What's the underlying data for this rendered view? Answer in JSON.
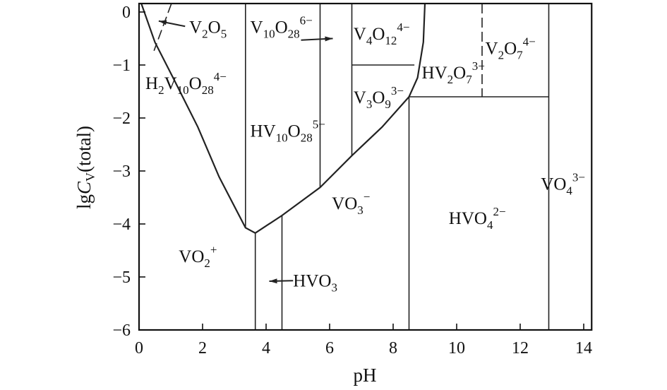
{
  "chart_data": {
    "type": "line",
    "xlabel": "pH",
    "ylabel": {
      "main": "lg",
      "italic": "C",
      "sub": "V",
      "tail": "(total)"
    },
    "xlim": [
      0,
      14.25
    ],
    "ylim": [
      -6,
      0.16
    ],
    "xticks": [
      0,
      2,
      4,
      6,
      8,
      10,
      12,
      14
    ],
    "yticks": [
      0,
      -1,
      -2,
      -3,
      -4,
      -5,
      -6
    ],
    "grid": false,
    "line_color": "#222222",
    "boundaries": [
      {
        "name": "solubility-curve",
        "style": "solid",
        "points": [
          [
            0.07,
            0.16
          ],
          [
            0.5,
            -0.57
          ],
          [
            1.07,
            -1.24
          ],
          [
            1.85,
            -2.17
          ],
          [
            2.52,
            -3.11
          ],
          [
            3.35,
            -4.07
          ],
          [
            3.66,
            -4.17
          ],
          [
            4.5,
            -3.84
          ],
          [
            5.7,
            -3.31
          ],
          [
            6.7,
            -2.71
          ],
          [
            7.65,
            -2.17
          ],
          [
            8.5,
            -1.6
          ],
          [
            8.77,
            -1.24
          ],
          [
            8.95,
            -0.57
          ],
          [
            9.0,
            0.16
          ]
        ]
      },
      {
        "name": "V2O5-boundary",
        "style": "dashed",
        "points": [
          [
            1.02,
            0.16
          ],
          [
            0.47,
            -0.73
          ]
        ]
      },
      {
        "name": "pH-3.35",
        "style": "solid",
        "points": [
          [
            3.35,
            0.16
          ],
          [
            3.35,
            -4.07
          ]
        ]
      },
      {
        "name": "pH-5.7",
        "style": "solid",
        "points": [
          [
            5.7,
            0.16
          ],
          [
            5.7,
            -3.31
          ]
        ]
      },
      {
        "name": "pH-6.7",
        "style": "solid",
        "points": [
          [
            6.7,
            0.16
          ],
          [
            6.7,
            -2.71
          ]
        ]
      },
      {
        "name": "lgC-minus-1",
        "style": "solid",
        "points": [
          [
            6.7,
            -1.0
          ],
          [
            8.67,
            -1.0
          ]
        ]
      },
      {
        "name": "pH-8.5",
        "style": "solid",
        "points": [
          [
            8.5,
            -1.6
          ],
          [
            8.5,
            -6
          ]
        ]
      },
      {
        "name": "lgC-minus-1.6",
        "style": "solid",
        "points": [
          [
            8.5,
            -1.6
          ],
          [
            12.9,
            -1.6
          ]
        ]
      },
      {
        "name": "pH-10.8",
        "style": "dashed",
        "points": [
          [
            10.8,
            0.16
          ],
          [
            10.8,
            -1.6
          ]
        ]
      },
      {
        "name": "pH-12.9",
        "style": "solid",
        "points": [
          [
            12.9,
            0.16
          ],
          [
            12.9,
            -6
          ]
        ]
      },
      {
        "name": "pH-3.66",
        "style": "solid",
        "points": [
          [
            3.66,
            -4.17
          ],
          [
            3.66,
            -6
          ]
        ]
      },
      {
        "name": "pH-4.5",
        "style": "solid",
        "points": [
          [
            4.5,
            -3.84
          ],
          [
            4.5,
            -6
          ]
        ]
      }
    ],
    "arrows": [
      {
        "name": "V2O5-pointer",
        "from": [
          1.45,
          -0.27
        ],
        "to": [
          0.62,
          -0.17
        ]
      },
      {
        "name": "V10O28-pointer",
        "from": [
          5.1,
          -0.53
        ],
        "to": [
          6.1,
          -0.5
        ]
      },
      {
        "name": "HVO3-pointer",
        "from": [
          4.85,
          -5.07
        ],
        "to": [
          4.1,
          -5.08
        ]
      }
    ],
    "regions": [
      {
        "name": "V2O5",
        "at": [
          1.58,
          -0.39
        ],
        "parts": [
          {
            "t": "V"
          },
          {
            "t": "2",
            "s": "sub"
          },
          {
            "t": "O"
          },
          {
            "t": "5",
            "s": "sub"
          }
        ]
      },
      {
        "name": "V10O28-6",
        "at": [
          3.5,
          -0.39
        ],
        "parts": [
          {
            "t": "V"
          },
          {
            "t": "10",
            "s": "sub"
          },
          {
            "t": "O"
          },
          {
            "t": "28",
            "s": "sub"
          },
          {
            "t": "6−",
            "s": "sup"
          }
        ]
      },
      {
        "name": "V4O12-4",
        "at": [
          6.75,
          -0.52
        ],
        "parts": [
          {
            "t": "V"
          },
          {
            "t": "4",
            "s": "sub"
          },
          {
            "t": "O"
          },
          {
            "t": "12",
            "s": "sub"
          },
          {
            "t": "4−",
            "s": "sup"
          }
        ]
      },
      {
        "name": "V2O7-4",
        "at": [
          10.9,
          -0.79
        ],
        "parts": [
          {
            "t": "V"
          },
          {
            "t": "2",
            "s": "sub"
          },
          {
            "t": "O"
          },
          {
            "t": "7",
            "s": "sub"
          },
          {
            "t": "4−",
            "s": "sup"
          }
        ]
      },
      {
        "name": "H2V10O28-4",
        "at": [
          0.2,
          -1.45
        ],
        "parts": [
          {
            "t": "H"
          },
          {
            "t": "2",
            "s": "sub"
          },
          {
            "t": "V"
          },
          {
            "t": "10",
            "s": "sub"
          },
          {
            "t": "O"
          },
          {
            "t": "28",
            "s": "sub"
          },
          {
            "t": "4−",
            "s": "sup"
          }
        ]
      },
      {
        "name": "HV2O7-3",
        "at": [
          8.9,
          -1.25
        ],
        "parts": [
          {
            "t": "H"
          },
          {
            "t": "V"
          },
          {
            "t": "2",
            "s": "sub"
          },
          {
            "t": "O"
          },
          {
            "t": "7",
            "s": "sub"
          },
          {
            "t": "3−",
            "s": "sup"
          }
        ]
      },
      {
        "name": "V3O9-3",
        "at": [
          6.75,
          -1.72
        ],
        "parts": [
          {
            "t": "V"
          },
          {
            "t": "3",
            "s": "sub"
          },
          {
            "t": "O"
          },
          {
            "t": "9",
            "s": "sub"
          },
          {
            "t": "3−",
            "s": "sup"
          }
        ]
      },
      {
        "name": "HV10O28-5",
        "at": [
          3.5,
          -2.35
        ],
        "parts": [
          {
            "t": "H"
          },
          {
            "t": "V"
          },
          {
            "t": "10",
            "s": "sub"
          },
          {
            "t": "O"
          },
          {
            "t": "28",
            "s": "sub"
          },
          {
            "t": "5−",
            "s": "sup"
          }
        ]
      },
      {
        "name": "VO3",
        "at": [
          6.07,
          -3.72
        ],
        "parts": [
          {
            "t": "V"
          },
          {
            "t": "O"
          },
          {
            "t": "3",
            "s": "sub"
          },
          {
            "t": "−",
            "s": "sup"
          }
        ]
      },
      {
        "name": "HVO4-2",
        "at": [
          9.75,
          -4.0
        ],
        "parts": [
          {
            "t": "H"
          },
          {
            "t": "V"
          },
          {
            "t": "O"
          },
          {
            "t": "4",
            "s": "sub"
          },
          {
            "t": "2−",
            "s": "sup"
          }
        ]
      },
      {
        "name": "VO4-3",
        "at": [
          12.65,
          -3.35
        ],
        "parts": [
          {
            "t": "V"
          },
          {
            "t": "O"
          },
          {
            "t": "4",
            "s": "sub"
          },
          {
            "t": "3−",
            "s": "sup"
          }
        ]
      },
      {
        "name": "VO2",
        "at": [
          1.25,
          -4.72
        ],
        "parts": [
          {
            "t": "V"
          },
          {
            "t": "O"
          },
          {
            "t": "2",
            "s": "sub"
          },
          {
            "t": "+",
            "s": "sup"
          }
        ]
      },
      {
        "name": "HVO3",
        "at": [
          4.85,
          -5.18
        ],
        "parts": [
          {
            "t": "H"
          },
          {
            "t": "V"
          },
          {
            "t": "O"
          },
          {
            "t": "3",
            "s": "sub"
          }
        ]
      }
    ]
  }
}
